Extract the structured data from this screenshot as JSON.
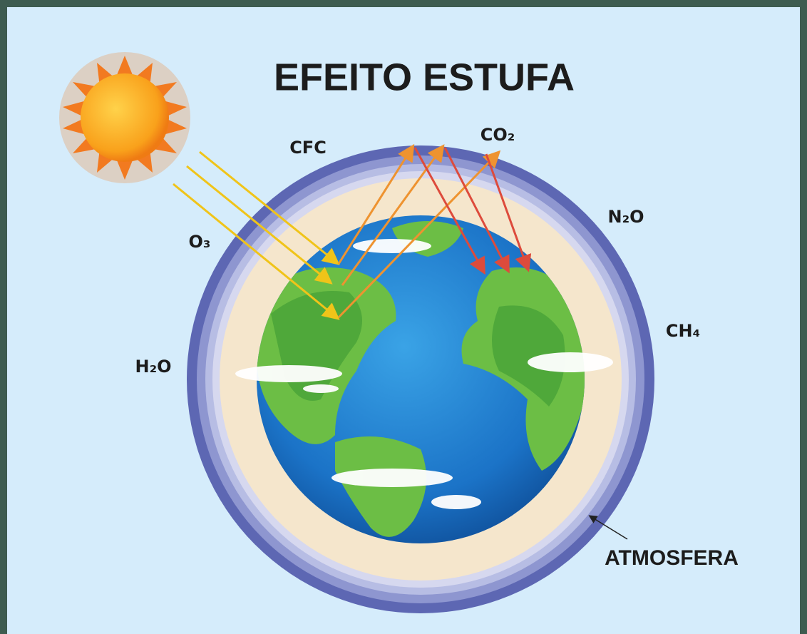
{
  "header": {
    "title": "EFEITO ESTUFA"
  },
  "gases": [
    {
      "label": "CFC"
    },
    {
      "label": "CO₂"
    },
    {
      "label": "N₂O"
    },
    {
      "label": "O₃"
    },
    {
      "label": "CH₄"
    },
    {
      "label": "H₂O"
    }
  ],
  "atmosphere": {
    "label": "ATMOSFERA"
  }
}
